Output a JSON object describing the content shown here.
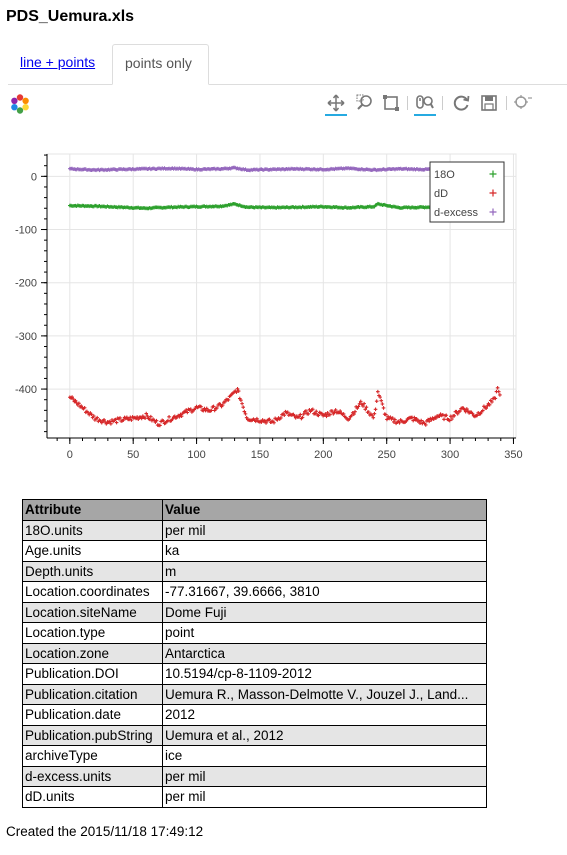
{
  "page": {
    "title": "PDS_Uemura.xls"
  },
  "tabs": [
    {
      "label": "line + points"
    },
    {
      "label": "points only"
    }
  ],
  "toolbar": {
    "tools": [
      "pan-icon",
      "box-zoom-icon",
      "resize-icon",
      "wheel-zoom-icon",
      "reset-icon",
      "save-icon",
      "hover-icon"
    ]
  },
  "chart_data": {
    "type": "scatter",
    "title": "",
    "xlabel": "",
    "ylabel": "",
    "xlim": [
      -18,
      352
    ],
    "ylim": [
      -492,
      42
    ],
    "xticks": [
      0,
      50,
      100,
      150,
      200,
      250,
      300,
      350
    ],
    "yticks": [
      0,
      -100,
      -200,
      -300,
      -400
    ],
    "grid": true,
    "legend_position": "top-right",
    "x_range_data": [
      0,
      340
    ],
    "series": [
      {
        "name": "18O",
        "color": "#2ca02c",
        "x": [
          0,
          20,
          40,
          60,
          80,
          100,
          120,
          130,
          140,
          160,
          180,
          200,
          220,
          240,
          243,
          260,
          280,
          300,
          320,
          340
        ],
        "y": [
          -55,
          -56,
          -58,
          -60,
          -58,
          -57,
          -56,
          -52,
          -58,
          -59,
          -58,
          -57,
          -59,
          -57,
          -52,
          -59,
          -58,
          -57,
          -58,
          -57
        ]
      },
      {
        "name": "dD",
        "color": "#d62728",
        "x": [
          0,
          10,
          20,
          30,
          40,
          50,
          60,
          70,
          80,
          90,
          100,
          110,
          120,
          128,
          132,
          140,
          150,
          160,
          170,
          180,
          190,
          200,
          210,
          220,
          230,
          240,
          243,
          250,
          260,
          270,
          280,
          290,
          300,
          310,
          320,
          330,
          335,
          338,
          340
        ],
        "y": [
          -415,
          -435,
          -455,
          -462,
          -458,
          -455,
          -450,
          -465,
          -455,
          -445,
          -435,
          -440,
          -430,
          -412,
          -400,
          -455,
          -458,
          -462,
          -445,
          -455,
          -440,
          -450,
          -440,
          -455,
          -425,
          -455,
          -405,
          -455,
          -462,
          -455,
          -465,
          -450,
          -455,
          -435,
          -450,
          -430,
          -420,
          -395,
          -425
        ]
      },
      {
        "name": "d-excess",
        "color": "#9467bd",
        "x": [
          0,
          20,
          40,
          60,
          80,
          100,
          120,
          130,
          140,
          160,
          180,
          200,
          220,
          240,
          260,
          280,
          300,
          320,
          340
        ],
        "y": [
          14,
          12,
          13,
          14,
          15,
          13,
          14,
          16,
          12,
          13,
          14,
          13,
          15,
          12,
          14,
          13,
          15,
          14,
          13
        ]
      }
    ]
  },
  "table": {
    "headers": [
      "Attribute",
      "Value"
    ],
    "rows": [
      [
        "18O.units",
        "per mil"
      ],
      [
        "Age.units",
        "ka"
      ],
      [
        "Depth.units",
        "m"
      ],
      [
        "Location.coordinates",
        "-77.31667, 39.6666, 3810"
      ],
      [
        "Location.siteName",
        "Dome Fuji"
      ],
      [
        "Location.type",
        "point"
      ],
      [
        "Location.zone",
        "Antarctica"
      ],
      [
        "Publication.DOI",
        "10.5194/cp-8-1109-2012"
      ],
      [
        "Publication.citation",
        "Uemura R., Masson-Delmotte V., Jouzel J., Land..."
      ],
      [
        "Publication.date",
        "2012"
      ],
      [
        "Publication.pubString",
        "Uemura et al., 2012"
      ],
      [
        "archiveType",
        "ice"
      ],
      [
        "d-excess.units",
        "per mil"
      ],
      [
        "dD.units",
        "per mil"
      ]
    ]
  },
  "footer": {
    "created": "Created the 2015/11/18 17:49:12"
  }
}
